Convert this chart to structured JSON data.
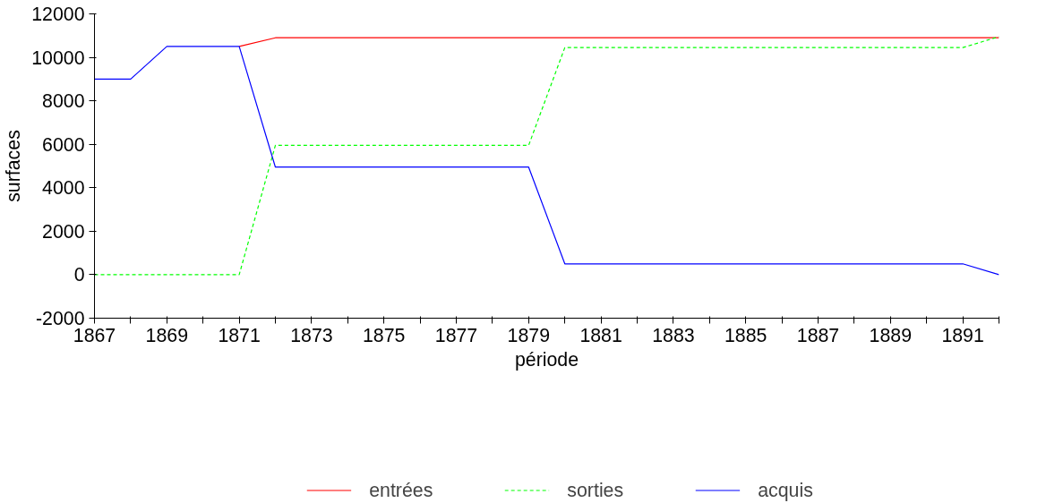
{
  "chart_data": {
    "type": "line",
    "xlabel": "période",
    "ylabel": "surfaces",
    "x": [
      1867,
      1868,
      1869,
      1870,
      1871,
      1872,
      1873,
      1874,
      1875,
      1876,
      1877,
      1878,
      1879,
      1880,
      1881,
      1882,
      1883,
      1884,
      1885,
      1886,
      1887,
      1888,
      1889,
      1890,
      1891,
      1892
    ],
    "series": [
      {
        "name": "entrées",
        "color": "#ff0000",
        "line_style": "solid",
        "values": [
          null,
          null,
          null,
          null,
          10500,
          10900,
          10900,
          10900,
          10900,
          10900,
          10900,
          10900,
          10900,
          10900,
          10900,
          10900,
          10900,
          10900,
          10900,
          10900,
          10900,
          10900,
          10900,
          10900,
          10900,
          10900
        ]
      },
      {
        "name": "sorties",
        "color": "#00ff00",
        "line_style": "dashed",
        "values": [
          0,
          0,
          0,
          0,
          0,
          5950,
          5950,
          5950,
          5950,
          5950,
          5950,
          5950,
          5950,
          10450,
          10450,
          10450,
          10450,
          10450,
          10450,
          10450,
          10450,
          10450,
          10450,
          10450,
          10450,
          10950
        ]
      },
      {
        "name": "acquis",
        "color": "#0000ff",
        "line_style": "solid",
        "values": [
          9000,
          9000,
          10500,
          10500,
          10500,
          4950,
          4950,
          4950,
          4950,
          4950,
          4950,
          4950,
          4950,
          500,
          500,
          500,
          500,
          500,
          500,
          500,
          500,
          500,
          500,
          500,
          500,
          0
        ]
      }
    ],
    "xlim": [
      1867,
      1892
    ],
    "xticks": [
      1867,
      {
        "value": 1868,
        "label": null
      },
      1869,
      {
        "value": 1870,
        "label": null
      },
      1871,
      {
        "value": 1872,
        "label": null
      },
      1873,
      {
        "value": 1874,
        "label": null
      },
      1875,
      {
        "value": 1876,
        "label": null
      },
      1877,
      {
        "value": 1878,
        "label": null
      },
      1879,
      {
        "value": 1880,
        "label": null
      },
      1881,
      {
        "value": 1882,
        "label": null
      },
      1883,
      {
        "value": 1884,
        "label": null
      },
      1885,
      {
        "value": 1886,
        "label": null
      },
      1887,
      {
        "value": 1888,
        "label": null
      },
      1889,
      {
        "value": 1890,
        "label": null
      },
      1891,
      {
        "value": 1892,
        "label": null
      }
    ],
    "ylim": [
      -2000,
      12000
    ],
    "yticks": [
      -2000,
      0,
      2000,
      4000,
      6000,
      8000,
      10000,
      12000
    ],
    "grid": false,
    "legend": "bottom",
    "marker": "none"
  }
}
